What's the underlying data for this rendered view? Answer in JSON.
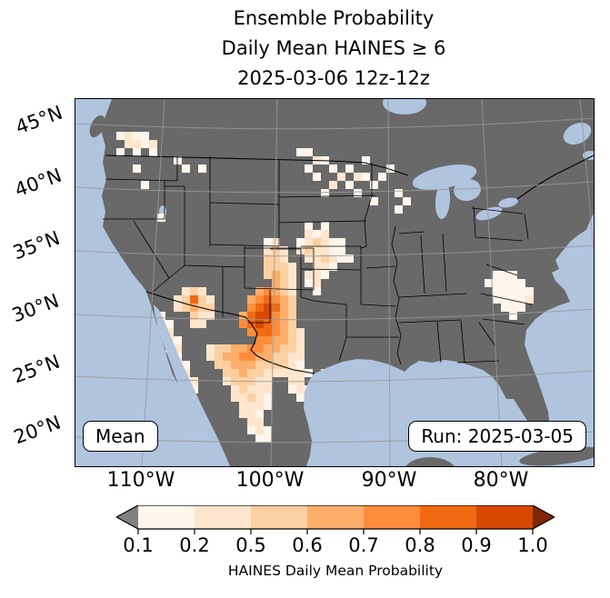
{
  "title": {
    "line1": "Ensemble Probability",
    "line2": "Daily Mean HAINES ≥ 6",
    "line3": "2025-03-06 12z-12z"
  },
  "axes": {
    "lat": [
      "45°N",
      "40°N",
      "35°N",
      "30°N",
      "25°N",
      "20°N"
    ],
    "lon": [
      "110°W",
      "100°W",
      "90°W",
      "80°W"
    ]
  },
  "map": {
    "labels": {
      "mean": "Mean",
      "run": "Run: 2025-03-05"
    },
    "colors": {
      "ocean": "#b0c4de",
      "land": "#696969",
      "border": "#000000",
      "grid": "#999999"
    },
    "cell_size": 9,
    "cells": [
      [
        5,
        4,
        0
      ],
      [
        6,
        4,
        1
      ],
      [
        7,
        4,
        0
      ],
      [
        8,
        4,
        0
      ],
      [
        6,
        5,
        1
      ],
      [
        7,
        5,
        1
      ],
      [
        8,
        5,
        0
      ],
      [
        9,
        5,
        1
      ],
      [
        5,
        6,
        0
      ],
      [
        7,
        6,
        0
      ],
      [
        9,
        6,
        0
      ],
      [
        7,
        8,
        0
      ],
      [
        8,
        10,
        0
      ],
      [
        12,
        7,
        0
      ],
      [
        13,
        8,
        0
      ],
      [
        15,
        8,
        0
      ],
      [
        10,
        14,
        0
      ],
      [
        27,
        6,
        0
      ],
      [
        28,
        6,
        0
      ],
      [
        29,
        7,
        1
      ],
      [
        30,
        7,
        0
      ],
      [
        28,
        8,
        0
      ],
      [
        31,
        8,
        0
      ],
      [
        33,
        8,
        0
      ],
      [
        29,
        9,
        0
      ],
      [
        32,
        9,
        1
      ],
      [
        34,
        9,
        1
      ],
      [
        35,
        9,
        0
      ],
      [
        37,
        9,
        0
      ],
      [
        38,
        8,
        0
      ],
      [
        35,
        7,
        0
      ],
      [
        30,
        11,
        0
      ],
      [
        31,
        10,
        1
      ],
      [
        33,
        10,
        0
      ],
      [
        36,
        10,
        0
      ],
      [
        34,
        11,
        0
      ],
      [
        36,
        12,
        0
      ],
      [
        39,
        11,
        0
      ],
      [
        40,
        12,
        0
      ],
      [
        39,
        13,
        0
      ],
      [
        28,
        15,
        0
      ],
      [
        30,
        15,
        0
      ],
      [
        28,
        16,
        1
      ],
      [
        29,
        16,
        0
      ],
      [
        30,
        16,
        1
      ],
      [
        27,
        17,
        0
      ],
      [
        28,
        17,
        1
      ],
      [
        29,
        17,
        2
      ],
      [
        30,
        17,
        1
      ],
      [
        31,
        17,
        0
      ],
      [
        32,
        17,
        0
      ],
      [
        27,
        18,
        1
      ],
      [
        28,
        18,
        2
      ],
      [
        29,
        18,
        1
      ],
      [
        30,
        18,
        1
      ],
      [
        31,
        18,
        0
      ],
      [
        32,
        18,
        0
      ],
      [
        28,
        19,
        1
      ],
      [
        29,
        19,
        1
      ],
      [
        30,
        19,
        2
      ],
      [
        31,
        19,
        1
      ],
      [
        32,
        19,
        0
      ],
      [
        33,
        19,
        0
      ],
      [
        29,
        20,
        1
      ],
      [
        30,
        20,
        1
      ],
      [
        31,
        20,
        0
      ],
      [
        28,
        21,
        1
      ],
      [
        29,
        21,
        1
      ],
      [
        30,
        21,
        0
      ],
      [
        28,
        22,
        0
      ],
      [
        29,
        22,
        1
      ],
      [
        29,
        23,
        0
      ],
      [
        23,
        17,
        0
      ],
      [
        24,
        17,
        1
      ],
      [
        23,
        18,
        1
      ],
      [
        24,
        18,
        2
      ],
      [
        25,
        18,
        1
      ],
      [
        23,
        19,
        2
      ],
      [
        24,
        19,
        2
      ],
      [
        25,
        19,
        1
      ],
      [
        23,
        20,
        2
      ],
      [
        24,
        20,
        2
      ],
      [
        25,
        20,
        2
      ],
      [
        26,
        20,
        1
      ],
      [
        23,
        21,
        2
      ],
      [
        24,
        21,
        3
      ],
      [
        25,
        21,
        2
      ],
      [
        26,
        21,
        1
      ],
      [
        24,
        22,
        3
      ],
      [
        25,
        22,
        2
      ],
      [
        26,
        22,
        1
      ],
      [
        22,
        23,
        3
      ],
      [
        23,
        23,
        4
      ],
      [
        24,
        23,
        3
      ],
      [
        25,
        23,
        2
      ],
      [
        26,
        23,
        1
      ],
      [
        21,
        24,
        3
      ],
      [
        22,
        24,
        4
      ],
      [
        23,
        24,
        5
      ],
      [
        24,
        24,
        4
      ],
      [
        25,
        24,
        3
      ],
      [
        26,
        24,
        2
      ],
      [
        21,
        25,
        4
      ],
      [
        22,
        25,
        5
      ],
      [
        23,
        25,
        6
      ],
      [
        24,
        25,
        5
      ],
      [
        25,
        25,
        3
      ],
      [
        26,
        25,
        2
      ],
      [
        20,
        26,
        3
      ],
      [
        21,
        26,
        5
      ],
      [
        22,
        26,
        6
      ],
      [
        23,
        26,
        6
      ],
      [
        24,
        26,
        4
      ],
      [
        25,
        26,
        3
      ],
      [
        26,
        26,
        2
      ],
      [
        20,
        27,
        4
      ],
      [
        21,
        27,
        5
      ],
      [
        22,
        27,
        6
      ],
      [
        23,
        27,
        5
      ],
      [
        24,
        27,
        4
      ],
      [
        25,
        27,
        3
      ],
      [
        26,
        27,
        2
      ],
      [
        21,
        28,
        4
      ],
      [
        22,
        28,
        5
      ],
      [
        23,
        28,
        5
      ],
      [
        24,
        28,
        4
      ],
      [
        25,
        28,
        3
      ],
      [
        26,
        28,
        2
      ],
      [
        27,
        28,
        1
      ],
      [
        22,
        29,
        4
      ],
      [
        23,
        29,
        4
      ],
      [
        24,
        29,
        3
      ],
      [
        25,
        29,
        3
      ],
      [
        26,
        29,
        2
      ],
      [
        27,
        29,
        1
      ],
      [
        23,
        30,
        3
      ],
      [
        24,
        30,
        3
      ],
      [
        25,
        30,
        2
      ],
      [
        26,
        30,
        2
      ],
      [
        27,
        30,
        1
      ],
      [
        23,
        31,
        3
      ],
      [
        24,
        31,
        2
      ],
      [
        25,
        31,
        2
      ],
      [
        26,
        31,
        1
      ],
      [
        27,
        31,
        1
      ],
      [
        24,
        32,
        2
      ],
      [
        25,
        32,
        2
      ],
      [
        26,
        32,
        1
      ],
      [
        27,
        32,
        0
      ],
      [
        24,
        33,
        1
      ],
      [
        25,
        33,
        1
      ],
      [
        26,
        33,
        1
      ],
      [
        27,
        33,
        1
      ],
      [
        28,
        33,
        0
      ],
      [
        26,
        34,
        1
      ],
      [
        27,
        34,
        1
      ],
      [
        26,
        35,
        0
      ],
      [
        27,
        35,
        1
      ],
      [
        28,
        35,
        0
      ],
      [
        27,
        36,
        0
      ],
      [
        28,
        36,
        1
      ],
      [
        29,
        34,
        0
      ],
      [
        30,
        33,
        0
      ],
      [
        12,
        24,
        1
      ],
      [
        13,
        23,
        1
      ],
      [
        14,
        23,
        2
      ],
      [
        15,
        23,
        1
      ],
      [
        13,
        24,
        2
      ],
      [
        14,
        24,
        5
      ],
      [
        15,
        24,
        2
      ],
      [
        16,
        24,
        1
      ],
      [
        12,
        25,
        1
      ],
      [
        13,
        25,
        2
      ],
      [
        14,
        25,
        3
      ],
      [
        15,
        25,
        2
      ],
      [
        16,
        25,
        2
      ],
      [
        14,
        26,
        2
      ],
      [
        15,
        26,
        1
      ],
      [
        16,
        26,
        1
      ],
      [
        14,
        27,
        1
      ],
      [
        15,
        27,
        1
      ],
      [
        10,
        26,
        0
      ],
      [
        10,
        27,
        1
      ],
      [
        11,
        27,
        0
      ],
      [
        10,
        28,
        1
      ],
      [
        11,
        28,
        1
      ],
      [
        11,
        29,
        1
      ],
      [
        12,
        29,
        0
      ],
      [
        11,
        30,
        1
      ],
      [
        12,
        30,
        1
      ],
      [
        12,
        31,
        0
      ],
      [
        12,
        32,
        1
      ],
      [
        13,
        32,
        0
      ],
      [
        13,
        33,
        1
      ],
      [
        13,
        34,
        0
      ],
      [
        14,
        34,
        1
      ],
      [
        14,
        35,
        0
      ],
      [
        16,
        30,
        1
      ],
      [
        17,
        30,
        2
      ],
      [
        18,
        30,
        2
      ],
      [
        19,
        30,
        3
      ],
      [
        20,
        30,
        3
      ],
      [
        21,
        30,
        4
      ],
      [
        22,
        30,
        4
      ],
      [
        16,
        31,
        1
      ],
      [
        17,
        31,
        2
      ],
      [
        18,
        31,
        3
      ],
      [
        19,
        31,
        3
      ],
      [
        20,
        31,
        4
      ],
      [
        21,
        31,
        4
      ],
      [
        22,
        31,
        3
      ],
      [
        17,
        32,
        2
      ],
      [
        18,
        32,
        2
      ],
      [
        19,
        32,
        3
      ],
      [
        20,
        32,
        3
      ],
      [
        21,
        32,
        3
      ],
      [
        22,
        32,
        2
      ],
      [
        23,
        32,
        2
      ],
      [
        18,
        33,
        2
      ],
      [
        19,
        33,
        2
      ],
      [
        20,
        33,
        3
      ],
      [
        21,
        33,
        2
      ],
      [
        22,
        33,
        2
      ],
      [
        23,
        33,
        1
      ],
      [
        18,
        34,
        1
      ],
      [
        19,
        34,
        2
      ],
      [
        20,
        34,
        2
      ],
      [
        21,
        34,
        2
      ],
      [
        22,
        34,
        1
      ],
      [
        23,
        34,
        1
      ],
      [
        19,
        35,
        1
      ],
      [
        20,
        35,
        2
      ],
      [
        21,
        35,
        1
      ],
      [
        22,
        35,
        1
      ],
      [
        23,
        35,
        1
      ],
      [
        19,
        36,
        1
      ],
      [
        20,
        36,
        1
      ],
      [
        21,
        36,
        2
      ],
      [
        22,
        36,
        1
      ],
      [
        23,
        36,
        0
      ],
      [
        20,
        37,
        1
      ],
      [
        21,
        37,
        1
      ],
      [
        22,
        37,
        1
      ],
      [
        23,
        37,
        0
      ],
      [
        20,
        38,
        1
      ],
      [
        21,
        38,
        1
      ],
      [
        22,
        38,
        0
      ],
      [
        21,
        39,
        1
      ],
      [
        22,
        39,
        1
      ],
      [
        21,
        40,
        0
      ],
      [
        22,
        40,
        1
      ],
      [
        23,
        40,
        0
      ],
      [
        22,
        41,
        0
      ],
      [
        23,
        41,
        0
      ],
      [
        51,
        21,
        0
      ],
      [
        52,
        21,
        0
      ],
      [
        53,
        21,
        0
      ],
      [
        50,
        22,
        0
      ],
      [
        51,
        22,
        0
      ],
      [
        52,
        22,
        0
      ],
      [
        53,
        22,
        0
      ],
      [
        54,
        22,
        0
      ],
      [
        51,
        23,
        0
      ],
      [
        52,
        23,
        0
      ],
      [
        53,
        23,
        0
      ],
      [
        54,
        23,
        0
      ],
      [
        55,
        23,
        0
      ],
      [
        51,
        24,
        0
      ],
      [
        52,
        24,
        0
      ],
      [
        53,
        24,
        0
      ],
      [
        54,
        24,
        0
      ],
      [
        55,
        24,
        1
      ],
      [
        52,
        25,
        0
      ],
      [
        53,
        25,
        0
      ],
      [
        54,
        25,
        0
      ],
      [
        53,
        26,
        0
      ]
    ]
  },
  "colorbar": {
    "ticks": [
      "0.1",
      "0.2",
      "0.5",
      "0.6",
      "0.7",
      "0.8",
      "0.9",
      "1.0"
    ],
    "label": "HAINES Daily Mean Probability",
    "colors": [
      "#fff5eb",
      "#fee6ce",
      "#fdd0a2",
      "#fdae6b",
      "#fd8d3c",
      "#f16913",
      "#d94801"
    ],
    "under_color": "#808080",
    "over_color": "#7f2704"
  }
}
